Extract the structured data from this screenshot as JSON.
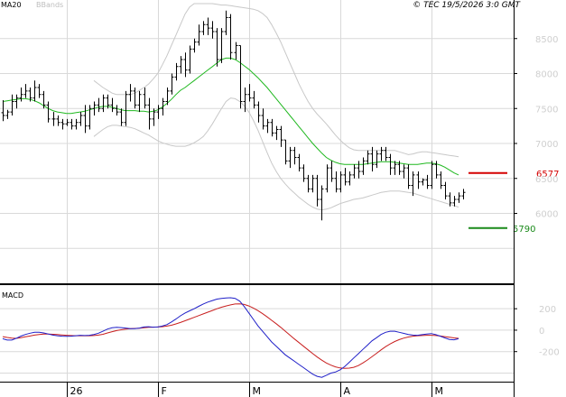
{
  "legend": {
    "ma": "MA20",
    "bb": "BBands"
  },
  "copyright": "© TEC 19/5/2026 3:0 GMT",
  "indicator_label": "MACD",
  "levels": {
    "resistance": {
      "label": "6577",
      "color": "#d40000"
    },
    "support": {
      "label": "5790",
      "color": "#1a8a1a"
    }
  },
  "colors": {
    "ma": "#1fb81f",
    "bb": "#c8c8c8",
    "macd": "#1f1fc8",
    "signal": "#c81f1f",
    "grid": "#d9d9d9",
    "candle": "#000000"
  },
  "chart_data": [
    {
      "type": "ohlc",
      "ylim": [
        5000,
        9000
      ],
      "y_ticks": [
        "8500",
        "8000",
        "7500",
        "7000",
        "6500",
        "6000"
      ],
      "x_ticks": [
        "26",
        "F",
        "M",
        "A",
        "M"
      ],
      "ohlc": [
        [
          7440,
          7620,
          7320,
          7400
        ],
        [
          7400,
          7480,
          7350,
          7450
        ],
        [
          7450,
          7700,
          7400,
          7600
        ],
        [
          7600,
          7700,
          7500,
          7650
        ],
        [
          7650,
          7800,
          7600,
          7700
        ],
        [
          7700,
          7850,
          7650,
          7750
        ],
        [
          7750,
          7800,
          7600,
          7650
        ],
        [
          7650,
          7900,
          7600,
          7800
        ],
        [
          7800,
          7850,
          7650,
          7700
        ],
        [
          7700,
          7750,
          7500,
          7550
        ],
        [
          7550,
          7600,
          7300,
          7350
        ],
        [
          7350,
          7450,
          7250,
          7350
        ],
        [
          7350,
          7400,
          7250,
          7300
        ],
        [
          7300,
          7350,
          7200,
          7280
        ],
        [
          7280,
          7350,
          7250,
          7300
        ],
        [
          7300,
          7350,
          7200,
          7250
        ],
        [
          7250,
          7350,
          7200,
          7300
        ],
        [
          7300,
          7450,
          7250,
          7400
        ],
        [
          7400,
          7550,
          7150,
          7250
        ],
        [
          7250,
          7550,
          7200,
          7500
        ],
        [
          7500,
          7600,
          7400,
          7550
        ],
        [
          7550,
          7650,
          7450,
          7500
        ],
        [
          7500,
          7700,
          7450,
          7650
        ],
        [
          7650,
          7700,
          7500,
          7550
        ],
        [
          7550,
          7650,
          7450,
          7500
        ],
        [
          7500,
          7550,
          7400,
          7450
        ],
        [
          7450,
          7500,
          7250,
          7300
        ],
        [
          7300,
          7750,
          7250,
          7700
        ],
        [
          7700,
          7850,
          7600,
          7750
        ],
        [
          7750,
          7800,
          7500,
          7550
        ],
        [
          7550,
          7750,
          7450,
          7700
        ],
        [
          7700,
          7800,
          7500,
          7550
        ],
        [
          7550,
          7650,
          7200,
          7350
        ],
        [
          7350,
          7500,
          7250,
          7450
        ],
        [
          7450,
          7550,
          7350,
          7500
        ],
        [
          7500,
          7650,
          7400,
          7600
        ],
        [
          7600,
          7800,
          7550,
          7750
        ],
        [
          7750,
          8000,
          7700,
          7950
        ],
        [
          7950,
          8150,
          7900,
          8100
        ],
        [
          8100,
          8250,
          8000,
          8200
        ],
        [
          8200,
          8300,
          7950,
          8050
        ],
        [
          8050,
          8400,
          8000,
          8350
        ],
        [
          8350,
          8500,
          8300,
          8450
        ],
        [
          8450,
          8700,
          8400,
          8600
        ],
        [
          8600,
          8750,
          8550,
          8700
        ],
        [
          8700,
          8800,
          8550,
          8650
        ],
        [
          8650,
          8750,
          8500,
          8600
        ],
        [
          8600,
          8650,
          8100,
          8200
        ],
        [
          8200,
          8650,
          8150,
          8600
        ],
        [
          8600,
          8900,
          8550,
          8800
        ],
        [
          8800,
          8850,
          8200,
          8300
        ],
        [
          8300,
          8450,
          8200,
          8400
        ],
        [
          8400,
          8400,
          7500,
          7600
        ],
        [
          7600,
          7800,
          7450,
          7700
        ],
        [
          7700,
          7850,
          7600,
          7650
        ],
        [
          7650,
          7750,
          7500,
          7550
        ],
        [
          7550,
          7600,
          7300,
          7400
        ],
        [
          7400,
          7500,
          7200,
          7250
        ],
        [
          7250,
          7350,
          7150,
          7300
        ],
        [
          7300,
          7350,
          7100,
          7150
        ],
        [
          7150,
          7250,
          7050,
          7200
        ],
        [
          7200,
          7250,
          6950,
          7050
        ],
        [
          7050,
          7050,
          6700,
          6750
        ],
        [
          6750,
          6950,
          6650,
          6900
        ],
        [
          6900,
          6950,
          6700,
          6800
        ],
        [
          6800,
          6850,
          6600,
          6650
        ],
        [
          6650,
          6700,
          6450,
          6500
        ],
        [
          6500,
          6550,
          6300,
          6350
        ],
        [
          6350,
          6550,
          6300,
          6500
        ],
        [
          6500,
          6550,
          6100,
          6200
        ],
        [
          6200,
          6400,
          5900,
          6350
        ],
        [
          6350,
          6700,
          6300,
          6650
        ],
        [
          6650,
          6750,
          6450,
          6500
        ],
        [
          6500,
          6600,
          6300,
          6350
        ],
        [
          6350,
          6600,
          6300,
          6550
        ],
        [
          6550,
          6650,
          6400,
          6450
        ],
        [
          6450,
          6600,
          6400,
          6550
        ],
        [
          6550,
          6700,
          6500,
          6650
        ],
        [
          6650,
          6750,
          6500,
          6600
        ],
        [
          6600,
          6800,
          6550,
          6750
        ],
        [
          6750,
          6900,
          6700,
          6850
        ],
        [
          6850,
          6950,
          6600,
          6700
        ],
        [
          6700,
          6900,
          6650,
          6850
        ],
        [
          6850,
          6950,
          6750,
          6900
        ],
        [
          6900,
          6950,
          6750,
          6800
        ],
        [
          6800,
          6850,
          6550,
          6650
        ],
        [
          6650,
          6750,
          6550,
          6700
        ],
        [
          6700,
          6750,
          6550,
          6600
        ],
        [
          6600,
          6700,
          6500,
          6650
        ],
        [
          6650,
          6700,
          6350,
          6400
        ],
        [
          6400,
          6600,
          6250,
          6550
        ],
        [
          6550,
          6600,
          6350,
          6450
        ],
        [
          6450,
          6500,
          6400,
          6480
        ],
        [
          6480,
          6550,
          6350,
          6400
        ],
        [
          6400,
          6750,
          6350,
          6700
        ],
        [
          6700,
          6750,
          6500,
          6550
        ],
        [
          6550,
          6600,
          6350,
          6400
        ],
        [
          6400,
          6450,
          6200,
          6250
        ],
        [
          6250,
          6300,
          6100,
          6150
        ],
        [
          6150,
          6250,
          6100,
          6200
        ],
        [
          6200,
          6300,
          6150,
          6250
        ],
        [
          6250,
          6350,
          6200,
          6300
        ]
      ],
      "ma20": [
        7600,
        7610,
        7620,
        7630,
        7640,
        7640,
        7630,
        7610,
        7580,
        7540,
        7500,
        7470,
        7450,
        7440,
        7430,
        7430,
        7440,
        7450,
        7460,
        7480,
        7500,
        7520,
        7530,
        7530,
        7520,
        7500,
        7480,
        7470,
        7470,
        7470,
        7460,
        7460,
        7450,
        7460,
        7480,
        7520,
        7570,
        7630,
        7700,
        7760,
        7800,
        7850,
        7900,
        7950,
        8000,
        8050,
        8100,
        8150,
        8200,
        8220,
        8220,
        8200,
        8160,
        8110,
        8060,
        8000,
        7940,
        7870,
        7800,
        7720,
        7640,
        7560,
        7480,
        7400,
        7320,
        7240,
        7160,
        7080,
        7000,
        6930,
        6860,
        6800,
        6760,
        6730,
        6710,
        6700,
        6700,
        6700,
        6700,
        6700,
        6710,
        6720,
        6730,
        6740,
        6740,
        6740,
        6730,
        6720,
        6710,
        6700,
        6700,
        6700,
        6710,
        6720,
        6720,
        6710,
        6690,
        6660,
        6620,
        6580,
        6550
      ],
      "bb_upper": [
        null,
        null,
        null,
        null,
        null,
        null,
        null,
        null,
        null,
        null,
        null,
        null,
        null,
        null,
        null,
        null,
        null,
        null,
        null,
        null,
        7900,
        7850,
        7800,
        7760,
        7720,
        7700,
        7700,
        7700,
        7700,
        7720,
        7760,
        7800,
        7850,
        7920,
        8000,
        8120,
        8250,
        8400,
        8550,
        8700,
        8850,
        8950,
        9000,
        9000,
        9000,
        9000,
        9000,
        8990,
        8980,
        8980,
        8970,
        8960,
        8950,
        8940,
        8930,
        8920,
        8900,
        8860,
        8800,
        8700,
        8580,
        8450,
        8300,
        8150,
        8000,
        7850,
        7720,
        7600,
        7500,
        7420,
        7350,
        7280,
        7200,
        7120,
        7050,
        6990,
        6940,
        6910,
        6900,
        6900,
        6900,
        6900,
        6900,
        6900,
        6900,
        6900,
        6900,
        6880,
        6860,
        6840,
        6850,
        6870,
        6880,
        6880,
        6870,
        6860,
        6850,
        6840,
        6830,
        6820,
        6810
      ],
      "bb_lower": [
        null,
        null,
        null,
        null,
        null,
        null,
        null,
        null,
        null,
        null,
        null,
        null,
        null,
        null,
        null,
        null,
        null,
        null,
        null,
        null,
        7100,
        7150,
        7200,
        7240,
        7260,
        7260,
        7250,
        7240,
        7230,
        7210,
        7180,
        7150,
        7120,
        7080,
        7040,
        7010,
        6990,
        6970,
        6960,
        6960,
        6960,
        6980,
        7010,
        7050,
        7100,
        7180,
        7280,
        7390,
        7500,
        7600,
        7650,
        7640,
        7600,
        7540,
        7450,
        7330,
        7190,
        7030,
        6870,
        6720,
        6600,
        6500,
        6420,
        6350,
        6290,
        6230,
        6180,
        6130,
        6090,
        6060,
        6050,
        6060,
        6080,
        6110,
        6140,
        6160,
        6180,
        6200,
        6210,
        6220,
        6240,
        6260,
        6280,
        6300,
        6310,
        6320,
        6320,
        6320,
        6310,
        6300,
        6290,
        6270,
        6250,
        6230,
        6210,
        6190,
        6170,
        6150,
        6130,
        6110,
        6090
      ],
      "levels": [
        6577,
        5790
      ]
    },
    {
      "type": "line",
      "title": "MACD",
      "ylim": [
        -480,
        420
      ],
      "y_ticks": [
        "200",
        "0",
        "-200"
      ],
      "series": [
        {
          "values": [
            -80,
            -92,
            -92,
            -75,
            -55,
            -40,
            -28,
            -20,
            -20,
            -26,
            -36,
            -46,
            -52,
            -56,
            -58,
            -56,
            -52,
            -48,
            -50,
            -48,
            -40,
            -28,
            -10,
            10,
            22,
            26,
            24,
            20,
            14,
            14,
            20,
            30,
            32,
            28,
            30,
            38,
            52,
            76,
            104,
            134,
            160,
            180,
            200,
            222,
            244,
            262,
            276,
            290,
            296,
            300,
            302,
            296,
            270,
            220,
            160,
            100,
            40,
            -10,
            -60,
            -110,
            -150,
            -190,
            -230,
            -260,
            -290,
            -320,
            -350,
            -380,
            -410,
            -430,
            -440,
            -420,
            -400,
            -390,
            -370,
            -340,
            -300,
            -260,
            -220,
            -180,
            -140,
            -100,
            -70,
            -40,
            -20,
            -10,
            -10,
            -20,
            -30,
            -40,
            -46,
            -48,
            -42,
            -36,
            -32,
            -42,
            -56,
            -72,
            -86,
            -90,
            -80
          ]
        },
        {
          "values": [
            -60,
            -68,
            -74,
            -76,
            -70,
            -62,
            -54,
            -46,
            -40,
            -36,
            -36,
            -38,
            -40,
            -44,
            -48,
            -50,
            -52,
            -52,
            -52,
            -52,
            -50,
            -46,
            -38,
            -26,
            -14,
            -4,
            4,
            10,
            14,
            16,
            18,
            22,
            26,
            28,
            30,
            32,
            38,
            46,
            58,
            72,
            88,
            104,
            120,
            136,
            152,
            168,
            184,
            200,
            214,
            226,
            236,
            244,
            246,
            240,
            226,
            206,
            182,
            154,
            124,
            92,
            60,
            26,
            -10,
            -46,
            -82,
            -116,
            -150,
            -184,
            -218,
            -250,
            -280,
            -306,
            -326,
            -342,
            -352,
            -356,
            -354,
            -346,
            -330,
            -306,
            -278,
            -248,
            -216,
            -184,
            -154,
            -128,
            -106,
            -88,
            -74,
            -64,
            -56,
            -52,
            -50,
            -48,
            -48,
            -50,
            -54,
            -60,
            -66,
            -72,
            -76
          ]
        }
      ]
    }
  ]
}
